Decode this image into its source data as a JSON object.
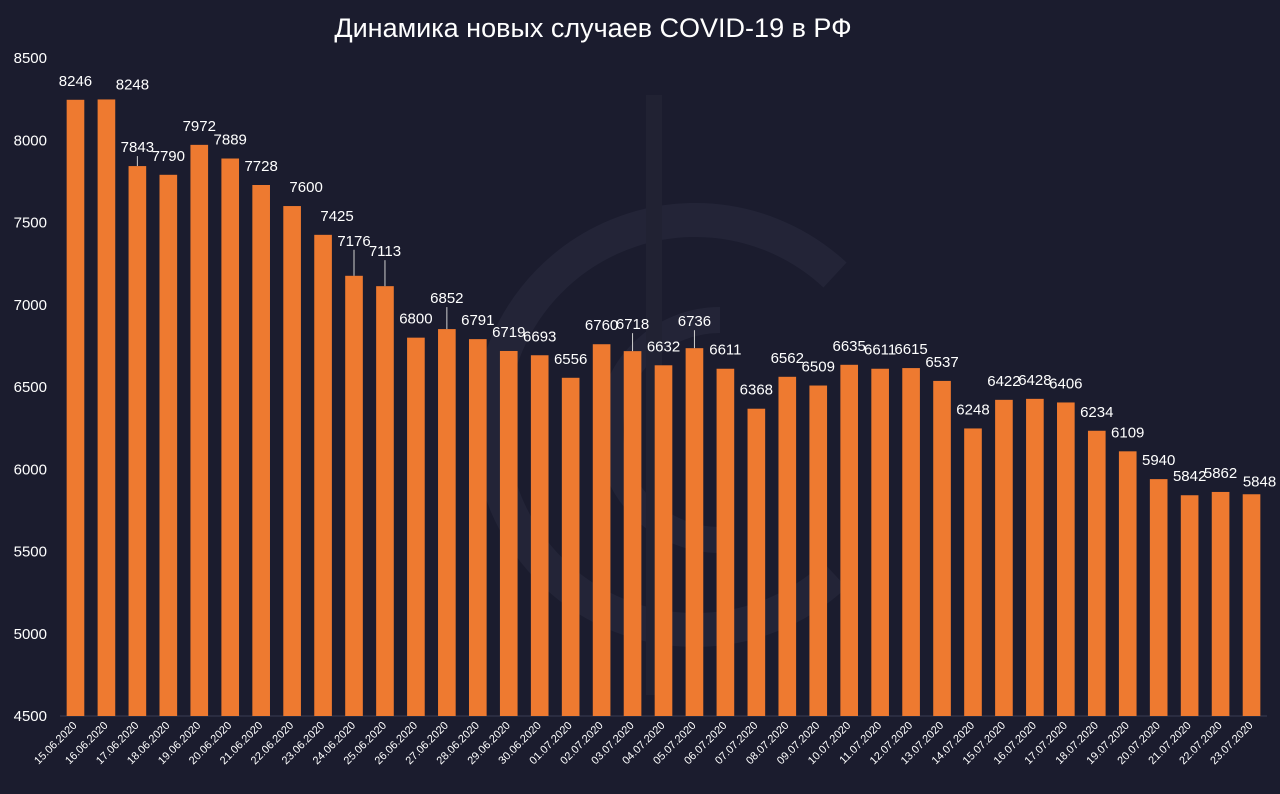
{
  "chart_data": {
    "type": "bar",
    "title": "Динамика новых случаев COVID-19 в РФ",
    "xlabel": "",
    "ylabel": "",
    "ylim": [
      4500,
      8500
    ],
    "yticks": [
      4500,
      5000,
      5500,
      6000,
      6500,
      7000,
      7500,
      8000,
      8500
    ],
    "grid": false,
    "categories": [
      "15.06.2020",
      "16.06.2020",
      "17.06.2020",
      "18.06.2020",
      "19.06.2020",
      "20.06.2020",
      "21.06.2020",
      "22.06.2020",
      "23.06.2020",
      "24.06.2020",
      "25.06.2020",
      "26.06.2020",
      "27.06.2020",
      "28.06.2020",
      "29.06.2020",
      "30.06.2020",
      "01.07.2020",
      "02.07.2020",
      "03.07.2020",
      "04.07.2020",
      "05.07.2020",
      "06.07.2020",
      "07.07.2020",
      "08.07.2020",
      "09.07.2020",
      "10.07.2020",
      "11.07.2020",
      "12.07.2020",
      "13.07.2020",
      "14.07.2020",
      "15.07.2020",
      "16.07.2020",
      "17.07.2020",
      "18.07.2020",
      "19.07.2020",
      "20.07.2020",
      "21.07.2020",
      "22.07.2020",
      "23.07.2020"
    ],
    "values": [
      8246,
      8248,
      7843,
      7790,
      7972,
      7889,
      7728,
      7600,
      7425,
      7176,
      7113,
      6800,
      6852,
      6791,
      6719,
      6693,
      6556,
      6760,
      6718,
      6632,
      6736,
      6611,
      6368,
      6562,
      6509,
      6635,
      6611,
      6615,
      6537,
      6248,
      6422,
      6428,
      6406,
      6234,
      6109,
      5940,
      5842,
      5862,
      5848
    ]
  },
  "colors": {
    "background": "#1b1c2e",
    "bar": "#ee7a30",
    "text": "#ffffff",
    "watermark": "#2a2c40"
  },
  "watermark_icon": "circle-logo-watermark-icon"
}
